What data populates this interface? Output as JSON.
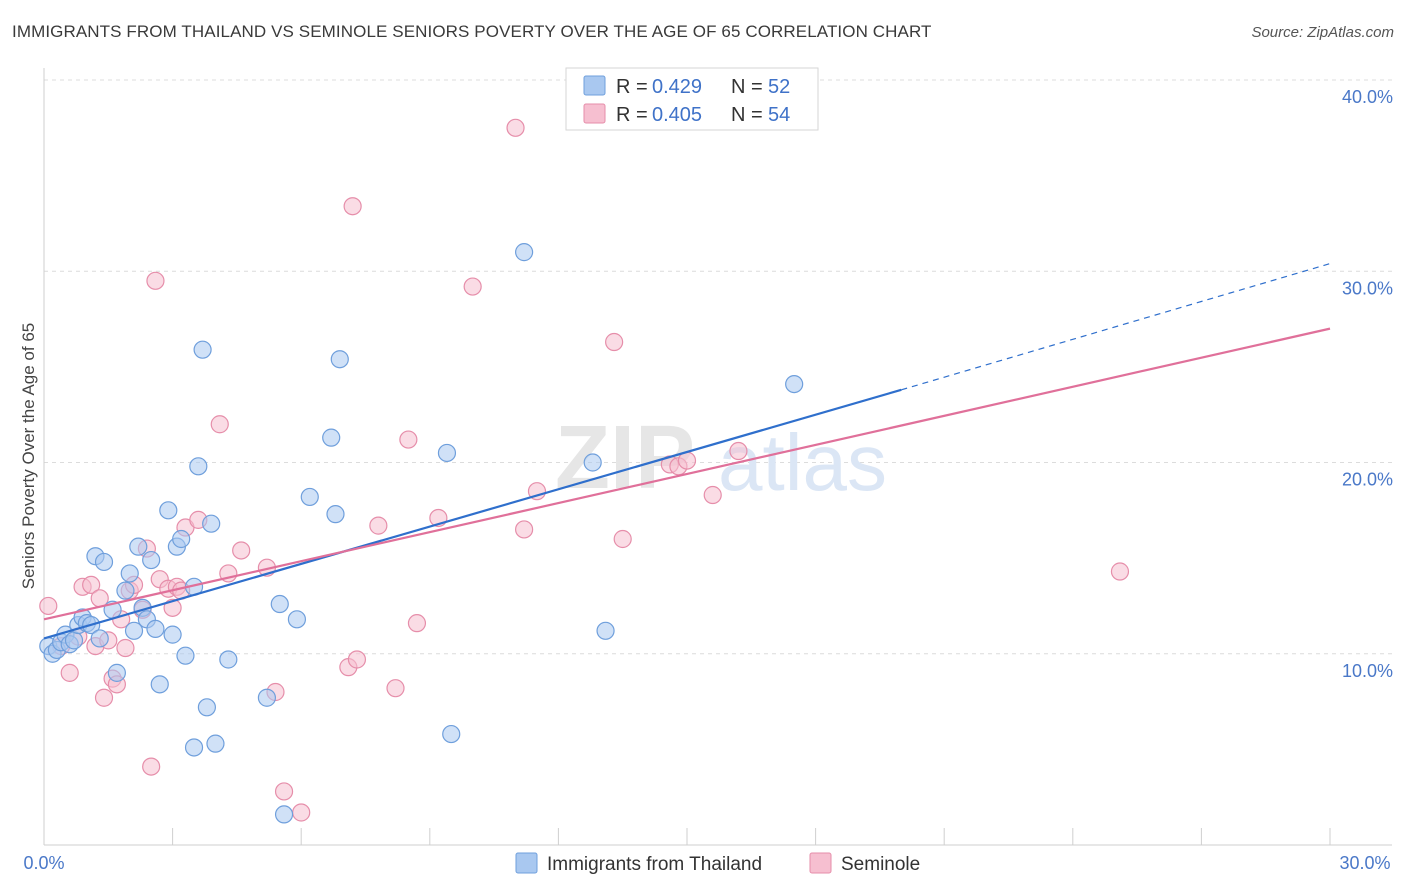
{
  "title": "IMMIGRANTS FROM THAILAND VS SEMINOLE SENIORS POVERTY OVER THE AGE OF 65 CORRELATION CHART",
  "source": "Source: ZipAtlas.com",
  "watermark": {
    "zip": "ZIP",
    "atlas": "atlas"
  },
  "legend": {
    "r_label": "R =",
    "n_label": "N =",
    "rows": [
      {
        "r": "0.429",
        "n": "52"
      },
      {
        "r": "0.405",
        "n": "54"
      }
    ]
  },
  "colors": {
    "blue_fill": "#a9c8f0",
    "blue_stroke": "#6f9fdc",
    "blue_line": "#2f6fcc",
    "pink_fill": "#f6bfd0",
    "pink_stroke": "#e68eaa",
    "pink_line": "#e0709a"
  },
  "chart_data": {
    "type": "scatter",
    "title": "IMMIGRANTS FROM THAILAND VS SEMINOLE SENIORS POVERTY OVER THE AGE OF 65 CORRELATION CHART",
    "xlabel": "",
    "ylabel": "Seniors Poverty Over the Age of 65",
    "xlim": [
      0,
      30
    ],
    "ylim": [
      0,
      40
    ],
    "x_tick_labels": [
      "0.0%",
      "30.0%"
    ],
    "y_ticks": [
      10,
      20,
      30,
      40
    ],
    "y_tick_labels": [
      "10.0%",
      "20.0%",
      "30.0%",
      "40.0%"
    ],
    "grid": true,
    "legend_position": "top-center",
    "series": [
      {
        "name": "Immigrants from Thailand",
        "r": 0.429,
        "n": 52,
        "trend": {
          "x0": 0,
          "y0": 10.8,
          "x1": 20,
          "y1": 23.8,
          "dashed_to_x": 30,
          "dashed_to_y": 30.4
        },
        "points": [
          [
            0.1,
            10.4
          ],
          [
            0.2,
            10.0
          ],
          [
            0.3,
            10.2
          ],
          [
            0.4,
            10.6
          ],
          [
            0.5,
            11.0
          ],
          [
            0.6,
            10.5
          ],
          [
            0.7,
            10.7
          ],
          [
            0.8,
            11.5
          ],
          [
            0.9,
            11.9
          ],
          [
            1.0,
            11.6
          ],
          [
            1.1,
            11.5
          ],
          [
            1.2,
            15.1
          ],
          [
            1.3,
            10.8
          ],
          [
            1.4,
            14.8
          ],
          [
            1.6,
            12.3
          ],
          [
            1.7,
            9.0
          ],
          [
            1.9,
            13.3
          ],
          [
            2.0,
            14.2
          ],
          [
            2.1,
            11.2
          ],
          [
            2.2,
            15.6
          ],
          [
            2.3,
            12.4
          ],
          [
            2.4,
            11.8
          ],
          [
            2.5,
            14.9
          ],
          [
            2.6,
            11.3
          ],
          [
            2.7,
            8.4
          ],
          [
            2.9,
            17.5
          ],
          [
            3.0,
            11.0
          ],
          [
            3.1,
            15.6
          ],
          [
            3.2,
            16.0
          ],
          [
            3.3,
            9.9
          ],
          [
            3.5,
            13.5
          ],
          [
            3.6,
            19.8
          ],
          [
            3.7,
            25.9
          ],
          [
            3.8,
            7.2
          ],
          [
            3.9,
            16.8
          ],
          [
            4.0,
            5.3
          ],
          [
            4.3,
            9.7
          ],
          [
            3.5,
            5.1
          ],
          [
            5.2,
            7.7
          ],
          [
            5.5,
            12.6
          ],
          [
            5.6,
            1.6
          ],
          [
            5.9,
            11.8
          ],
          [
            6.2,
            18.2
          ],
          [
            6.7,
            21.3
          ],
          [
            6.8,
            17.3
          ],
          [
            6.9,
            25.4
          ],
          [
            9.4,
            20.5
          ],
          [
            9.5,
            5.8
          ],
          [
            11.2,
            31.0
          ],
          [
            12.8,
            20.0
          ],
          [
            13.1,
            11.2
          ],
          [
            17.5,
            24.1
          ]
        ]
      },
      {
        "name": "Seminole",
        "r": 0.405,
        "n": 54,
        "trend": {
          "x0": 0,
          "y0": 11.8,
          "x1": 30,
          "y1": 27.0
        },
        "points": [
          [
            0.1,
            12.5
          ],
          [
            0.4,
            10.4
          ],
          [
            0.6,
            9.0
          ],
          [
            0.8,
            10.9
          ],
          [
            0.9,
            13.5
          ],
          [
            1.1,
            13.6
          ],
          [
            1.2,
            10.4
          ],
          [
            1.3,
            12.9
          ],
          [
            1.4,
            7.7
          ],
          [
            1.5,
            10.7
          ],
          [
            1.6,
            8.7
          ],
          [
            1.7,
            8.4
          ],
          [
            1.8,
            11.8
          ],
          [
            1.9,
            10.3
          ],
          [
            2.0,
            13.3
          ],
          [
            2.1,
            13.6
          ],
          [
            2.3,
            12.3
          ],
          [
            2.4,
            15.5
          ],
          [
            2.5,
            4.1
          ],
          [
            2.6,
            29.5
          ],
          [
            2.7,
            13.9
          ],
          [
            2.9,
            13.4
          ],
          [
            3.0,
            12.4
          ],
          [
            3.1,
            13.5
          ],
          [
            3.2,
            13.3
          ],
          [
            3.3,
            16.6
          ],
          [
            3.6,
            17.0
          ],
          [
            4.1,
            22.0
          ],
          [
            4.3,
            14.2
          ],
          [
            4.6,
            15.4
          ],
          [
            5.2,
            14.5
          ],
          [
            5.4,
            8.0
          ],
          [
            5.6,
            2.8
          ],
          [
            6.0,
            1.7
          ],
          [
            7.1,
            9.3
          ],
          [
            7.2,
            33.4
          ],
          [
            7.3,
            9.7
          ],
          [
            7.8,
            16.7
          ],
          [
            8.2,
            8.2
          ],
          [
            8.5,
            21.2
          ],
          [
            8.7,
            11.6
          ],
          [
            9.2,
            17.1
          ],
          [
            10.0,
            29.2
          ],
          [
            11.0,
            37.5
          ],
          [
            11.2,
            16.5
          ],
          [
            11.5,
            18.5
          ],
          [
            13.3,
            26.3
          ],
          [
            13.5,
            16.0
          ],
          [
            14.6,
            19.9
          ],
          [
            14.8,
            19.8
          ],
          [
            15.0,
            20.1
          ],
          [
            15.6,
            18.3
          ],
          [
            16.2,
            20.6
          ],
          [
            25.1,
            14.3
          ]
        ]
      }
    ]
  },
  "bottom_legend": [
    "Immigrants from Thailand",
    "Seminole"
  ]
}
